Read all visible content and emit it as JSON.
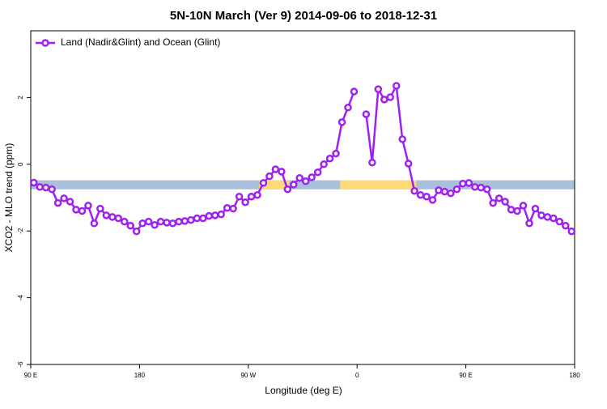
{
  "chart_data": {
    "type": "line",
    "title": "5N-10N March (Ver 9)   2014-09-06 to 2018-12-31",
    "x_label": "Longitude (deg E)",
    "y_label": "XCO2 - MLO trend (ppm)",
    "xlim": [
      90,
      540
    ],
    "ylim": [
      -6,
      4
    ],
    "xticks": [
      {
        "value": 90,
        "label": "90 E"
      },
      180,
      {
        "value": 270,
        "label": "90 W"
      },
      {
        "value": 360,
        "label": "0"
      },
      {
        "value": 450,
        "label": "90 E"
      },
      {
        "value": 540,
        "label": "180"
      }
    ],
    "yticks": [
      -6,
      -4,
      -2,
      0,
      2
    ],
    "legend": "top-left",
    "band": {
      "ylim": [
        -0.75,
        -0.48
      ],
      "color": "#a9c0dc",
      "highlight_color": "#fdd978",
      "highlights": [
        [
          279,
          304
        ],
        [
          346,
          409
        ]
      ]
    },
    "x": [
      92.5,
      97.5,
      102.5,
      107.5,
      112.5,
      117.5,
      122.5,
      127.5,
      132.5,
      137.5,
      142.5,
      147.5,
      152.5,
      157.5,
      162.5,
      167.5,
      172.5,
      177.5,
      182.5,
      187.5,
      192.5,
      197.5,
      202.5,
      207.5,
      212.5,
      217.5,
      222.5,
      227.5,
      232.5,
      237.5,
      242.5,
      247.5,
      252.5,
      257.5,
      262.5,
      267.5,
      272.5,
      277.5,
      282.5,
      287.5,
      292.5,
      297.5,
      302.5,
      307.5,
      312.5,
      317.5,
      322.5,
      327.5,
      332.5,
      337.5,
      342.5,
      347.5,
      352.5,
      357.5,
      362.5,
      367.5,
      372.5,
      377.5,
      382.5,
      387.5,
      392.5,
      397.5,
      402.5,
      407.5,
      412.5,
      417.5,
      422.5,
      427.5,
      432.5,
      437.5,
      442.5,
      447.5,
      452.5,
      457.5,
      462.5,
      467.5,
      472.5,
      477.5,
      482.5,
      487.5,
      492.5,
      497.5,
      502.5,
      507.5,
      512.5,
      517.5,
      522.5,
      527.5,
      532.5,
      537.5
    ],
    "series": [
      {
        "name": "Land (Nadir&Glint) and Ocean (Glint)",
        "color": "#a020f0",
        "values": [
          -0.55,
          -0.68,
          -0.7,
          -0.75,
          -1.16,
          -1.02,
          -1.12,
          -1.36,
          -1.4,
          -1.24,
          -1.77,
          -1.33,
          -1.53,
          -1.58,
          -1.62,
          -1.72,
          -1.84,
          -2.01,
          -1.77,
          -1.72,
          -1.82,
          -1.72,
          -1.75,
          -1.77,
          -1.72,
          -1.7,
          -1.67,
          -1.62,
          -1.62,
          -1.55,
          -1.53,
          -1.5,
          -1.31,
          -1.33,
          -0.97,
          -1.14,
          -0.97,
          -0.92,
          -0.56,
          -0.36,
          -0.15,
          -0.22,
          -0.75,
          -0.61,
          -0.41,
          -0.51,
          -0.39,
          -0.24,
          0,
          0.17,
          0.32,
          1.26,
          1.7,
          2.18,
          null,
          1.5,
          0.05,
          2.25,
          1.94,
          2.01,
          2.35,
          0.75,
          0.02,
          -0.8,
          -0.92,
          -0.97,
          -1.07,
          -0.78,
          -0.82,
          -0.87,
          -0.75,
          -0.58,
          -0.56,
          -0.68,
          -0.7,
          -0.75,
          -1.16,
          -1.02,
          -1.12,
          -1.36,
          -1.4,
          -1.24,
          -1.77,
          -1.33,
          -1.53,
          -1.58,
          -1.62,
          -1.72,
          -1.84,
          -2.01
        ]
      }
    ]
  }
}
